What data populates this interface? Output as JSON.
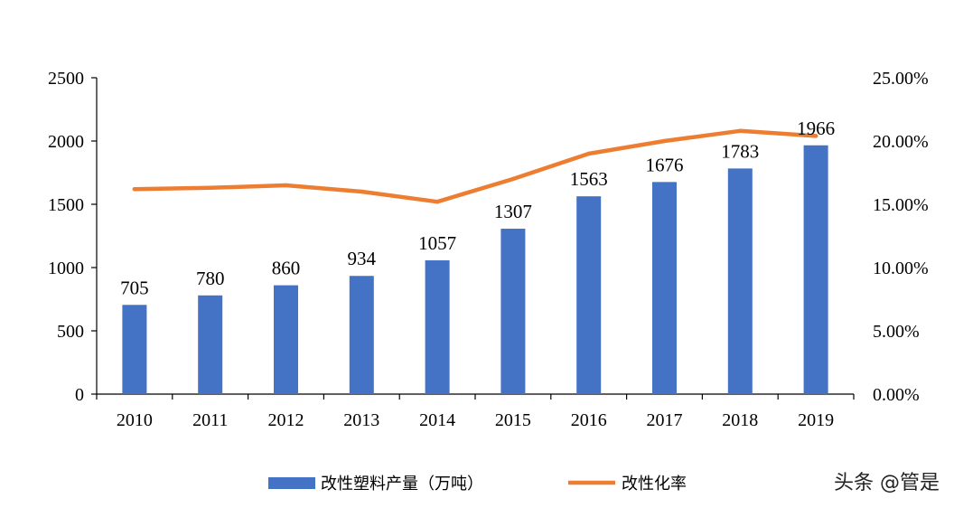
{
  "chart_data": {
    "type": "bar",
    "categories": [
      "2010",
      "2011",
      "2012",
      "2013",
      "2014",
      "2015",
      "2016",
      "2017",
      "2018",
      "2019"
    ],
    "series": [
      {
        "name": "改性塑料产量（万吨）",
        "kind": "bar",
        "axis": "left",
        "color": "#4472C4",
        "values": [
          705,
          780,
          860,
          934,
          1057,
          1307,
          1563,
          1676,
          1783,
          1966
        ],
        "labels": [
          "705",
          "780",
          "860",
          "934",
          "1057",
          "1307",
          "1563",
          "1676",
          "1783",
          "1966"
        ]
      },
      {
        "name": "改性化率",
        "kind": "line",
        "axis": "right",
        "color": "#ED7D31",
        "values": [
          16.2,
          16.3,
          16.5,
          16.0,
          15.2,
          17.0,
          19.0,
          20.0,
          20.8,
          20.4
        ]
      }
    ],
    "y_left": {
      "ylim": [
        0,
        2500
      ],
      "ticks": [
        0,
        500,
        1000,
        1500,
        2000,
        2500
      ],
      "tick_labels": [
        "0",
        "500",
        "1000",
        "1500",
        "2000",
        "2500"
      ]
    },
    "y_right": {
      "ylim": [
        0,
        25
      ],
      "ticks": [
        0,
        5,
        10,
        15,
        20,
        25
      ],
      "tick_labels": [
        "0.00%",
        "5.00%",
        "10.00%",
        "15.00%",
        "20.00%",
        "25.00%"
      ]
    },
    "grid": false,
    "legend_position": "bottom-center"
  },
  "watermark": "头条 @管是"
}
